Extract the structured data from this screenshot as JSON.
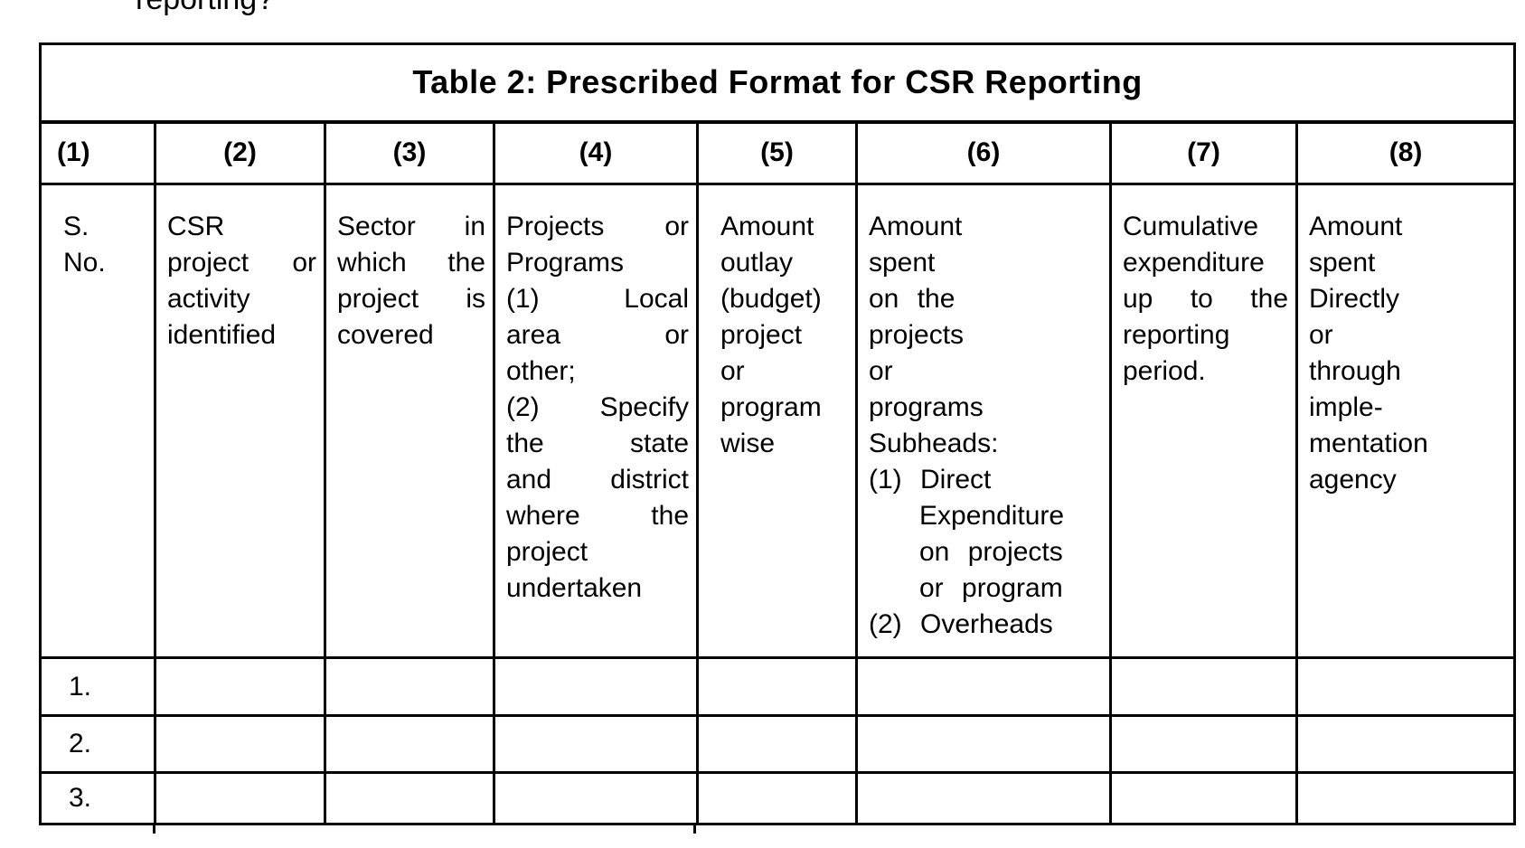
{
  "page": {
    "partial_text_top": "reporting?"
  },
  "table": {
    "title": "Table 2: Prescribed Format for CSR Reporting",
    "column_numbers": [
      "(1)",
      "(2)",
      "(3)",
      "(4)",
      "(5)",
      "(6)",
      "(7)",
      "(8)"
    ],
    "column_headers": [
      {
        "id": "s-no",
        "lines": [
          {
            "t": "S."
          },
          {
            "t": "No."
          }
        ]
      },
      {
        "id": "csr-project-or-activity",
        "lines": [
          {
            "t": "CSR"
          },
          {
            "t": "project or",
            "j": true
          },
          {
            "t": "activity"
          },
          {
            "t": "identified"
          }
        ]
      },
      {
        "id": "sector",
        "lines": [
          {
            "t": "Sector in",
            "j": true
          },
          {
            "t": "which the",
            "j": true
          },
          {
            "t": "project is",
            "j": true
          },
          {
            "t": "covered"
          }
        ]
      },
      {
        "id": "projects-or-programs",
        "lines": [
          {
            "t": "Projects or",
            "j": true
          },
          {
            "t": "Programs"
          },
          {
            "t": "(1) Local",
            "j": true
          },
          {
            "t": "area or",
            "j": true
          },
          {
            "t": "other;"
          },
          {
            "t": "(2) Specify",
            "j": true
          },
          {
            "t": "the state",
            "j": true
          },
          {
            "t": "and district",
            "j": true
          },
          {
            "t": "where the",
            "j": true
          },
          {
            "t": "project"
          },
          {
            "t": "undertaken"
          }
        ]
      },
      {
        "id": "amount-outlay",
        "lines": [
          {
            "t": "Amount"
          },
          {
            "t": "outlay"
          },
          {
            "t": "(budget)"
          },
          {
            "t": "project"
          },
          {
            "t": "or"
          },
          {
            "t": "program"
          },
          {
            "t": "wise"
          }
        ]
      },
      {
        "id": "amount-spent-on-projects",
        "lines": [
          {
            "t": "Amount"
          },
          {
            "t": "spent"
          },
          {
            "t": "on the",
            "w": true
          },
          {
            "t": "projects"
          },
          {
            "t": "or"
          },
          {
            "t": "programs"
          },
          {
            "t": "Subheads:"
          },
          {
            "t": "(1) Direct",
            "w": true
          },
          {
            "t": "Expenditure",
            "ind": true
          },
          {
            "t": "on projects",
            "ind": true,
            "w": true
          },
          {
            "t": "or program",
            "ind": true,
            "w": true
          },
          {
            "t": "(2) Overheads",
            "w": true
          }
        ]
      },
      {
        "id": "cumulative-expenditure",
        "lines": [
          {
            "t": "Cumulative"
          },
          {
            "t": "expenditure"
          },
          {
            "t": "up to the",
            "j": true
          },
          {
            "t": "reporting"
          },
          {
            "t": "period."
          }
        ]
      },
      {
        "id": "amount-spent-directly",
        "lines": [
          {
            "t": "Amount"
          },
          {
            "t": "spent"
          },
          {
            "t": "Directly"
          },
          {
            "t": "or"
          },
          {
            "t": "through"
          },
          {
            "t": "imple-"
          },
          {
            "t": "mentation"
          },
          {
            "t": "agency"
          }
        ]
      }
    ],
    "row_labels": [
      "1.",
      "2.",
      "3."
    ]
  }
}
